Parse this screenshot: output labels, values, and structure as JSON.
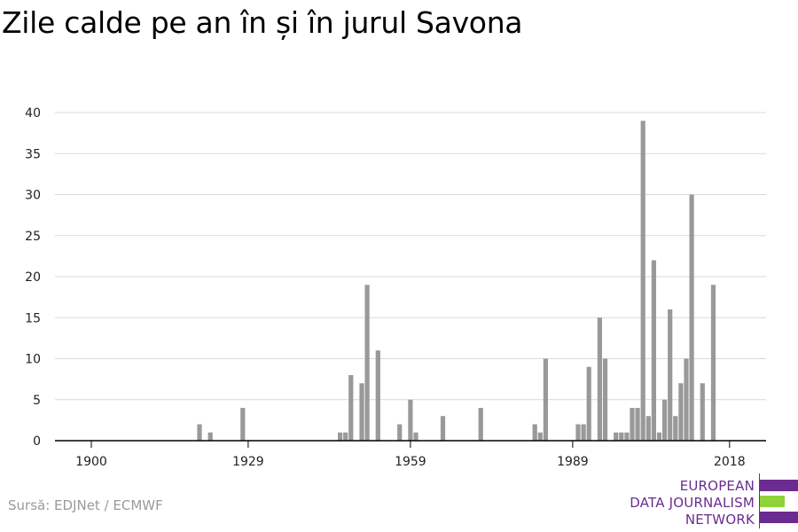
{
  "title": "Zile calde pe an în și în jurul Savona",
  "source": "Sursă: EDJNet / ECMWF",
  "logo": {
    "line1": "EUROPEAN",
    "line2": "DATA JOURNALISM",
    "line3": "NETWORK",
    "colors": {
      "purple": "#6a2c91",
      "green": "#8fd33a"
    }
  },
  "chart_data": {
    "type": "bar",
    "title": "Zile calde pe an în și în jurul Savona",
    "xlabel": "",
    "ylabel": "",
    "xlim": [
      1900,
      2018
    ],
    "ylim": [
      0,
      40
    ],
    "yticks": [
      0,
      5,
      10,
      15,
      20,
      25,
      30,
      35,
      40
    ],
    "xticks": [
      1900,
      1929,
      1959,
      1989,
      2018
    ],
    "grid": true,
    "bar_color": "#999999",
    "x": [
      1920,
      1922,
      1928,
      1946,
      1947,
      1948,
      1950,
      1951,
      1953,
      1957,
      1959,
      1960,
      1965,
      1972,
      1982,
      1983,
      1984,
      1990,
      1991,
      1992,
      1994,
      1995,
      1997,
      1998,
      1999,
      2000,
      2001,
      2002,
      2003,
      2004,
      2005,
      2006,
      2007,
      2008,
      2009,
      2010,
      2011,
      2013,
      2015,
      2016
    ],
    "values": [
      2,
      1,
      4,
      1,
      1,
      8,
      7,
      19,
      11,
      2,
      5,
      1,
      3,
      4,
      2,
      1,
      10,
      2,
      2,
      9,
      15,
      10,
      1,
      1,
      1,
      4,
      4,
      39,
      3,
      22,
      1,
      5,
      16,
      3,
      7,
      10,
      30,
      7,
      19,
      0
    ]
  }
}
